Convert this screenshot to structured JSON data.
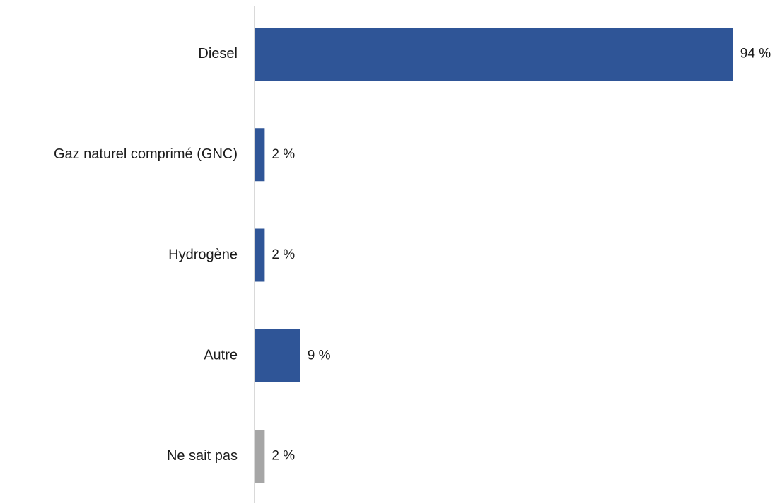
{
  "chart_data": {
    "type": "bar",
    "orientation": "horizontal",
    "categories": [
      "Diesel",
      "Gaz naturel comprimé (GNC)",
      "Hydrogène",
      "Autre",
      "Ne sait pas"
    ],
    "values": [
      94,
      2,
      2,
      9,
      2
    ],
    "value_labels": [
      "94 %",
      "2 %",
      "2 %",
      "9 %",
      "2 %"
    ],
    "colors": [
      "#2f5597",
      "#2f5597",
      "#2f5597",
      "#2f5597",
      "#a6a6a6"
    ],
    "axis_color": "#d9d9d9",
    "title": "",
    "xlabel": "",
    "ylabel": "",
    "grid": false,
    "legend": "none"
  }
}
